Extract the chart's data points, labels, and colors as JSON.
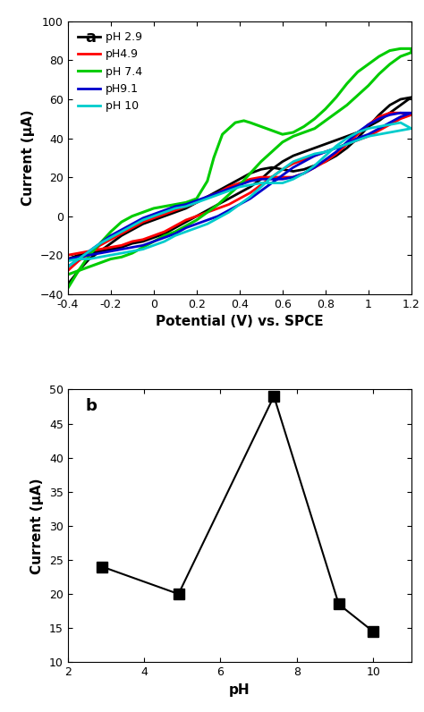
{
  "panel_a": {
    "title": "a",
    "xlabel": "Potential (V) vs. SPCE",
    "ylabel": "Current (μA)",
    "xlim": [
      -0.4,
      1.2
    ],
    "ylim": [
      -40,
      100
    ],
    "xticks": [
      -0.4,
      -0.2,
      0.0,
      0.2,
      0.4,
      0.6,
      0.8,
      1.0,
      1.2
    ],
    "yticks": [
      -40,
      -20,
      0,
      20,
      40,
      60,
      80,
      100
    ],
    "curves": [
      {
        "label": "pH 2.9",
        "color": "#000000",
        "lw": 2.0,
        "x": [
          -0.4,
          -0.35,
          -0.3,
          -0.25,
          -0.2,
          -0.15,
          -0.1,
          -0.05,
          0.0,
          0.05,
          0.1,
          0.15,
          0.2,
          0.25,
          0.3,
          0.35,
          0.4,
          0.45,
          0.5,
          0.55,
          0.6,
          0.65,
          0.7,
          0.75,
          0.8,
          0.85,
          0.9,
          0.95,
          1.0,
          1.05,
          1.1,
          1.15,
          1.2,
          1.2,
          1.15,
          1.1,
          1.05,
          1.0,
          0.95,
          0.9,
          0.85,
          0.8,
          0.75,
          0.7,
          0.65,
          0.6,
          0.55,
          0.5,
          0.45,
          0.4,
          0.35,
          0.3,
          0.25,
          0.2,
          0.15,
          0.1,
          0.05,
          0.0,
          -0.05,
          -0.1,
          -0.15,
          -0.2,
          -0.25,
          -0.3,
          -0.35,
          -0.4
        ],
        "y": [
          -35,
          -28,
          -22,
          -18,
          -14,
          -10,
          -7,
          -4,
          -2,
          0,
          2,
          4,
          7,
          10,
          13,
          16,
          19,
          22,
          24,
          25,
          24,
          23,
          24,
          26,
          28,
          31,
          35,
          40,
          46,
          52,
          57,
          60,
          61,
          61,
          57,
          53,
          49,
          46,
          43,
          41,
          39,
          37,
          35,
          33,
          31,
          28,
          24,
          19,
          15,
          12,
          9,
          6,
          3,
          0,
          -3,
          -6,
          -9,
          -11,
          -13,
          -14,
          -16,
          -17,
          -18,
          -19,
          -20,
          -22
        ]
      },
      {
        "label": "pH4.9",
        "color": "#ff0000",
        "lw": 2.0,
        "x": [
          -0.4,
          -0.35,
          -0.3,
          -0.25,
          -0.2,
          -0.15,
          -0.1,
          -0.05,
          0.0,
          0.05,
          0.1,
          0.15,
          0.2,
          0.25,
          0.3,
          0.35,
          0.4,
          0.45,
          0.5,
          0.55,
          0.6,
          0.65,
          0.7,
          0.75,
          0.8,
          0.85,
          0.9,
          0.95,
          1.0,
          1.05,
          1.1,
          1.15,
          1.2,
          1.2,
          1.15,
          1.1,
          1.05,
          1.0,
          0.95,
          0.9,
          0.85,
          0.8,
          0.75,
          0.7,
          0.65,
          0.6,
          0.55,
          0.5,
          0.45,
          0.4,
          0.35,
          0.3,
          0.25,
          0.2,
          0.15,
          0.1,
          0.05,
          0.0,
          -0.05,
          -0.1,
          -0.15,
          -0.2,
          -0.25,
          -0.3,
          -0.35,
          -0.4
        ],
        "y": [
          -28,
          -23,
          -19,
          -15,
          -12,
          -9,
          -6,
          -3,
          -1,
          1,
          3,
          5,
          7,
          10,
          12,
          15,
          17,
          19,
          20,
          20,
          20,
          20,
          22,
          25,
          28,
          32,
          37,
          42,
          47,
          51,
          53,
          53,
          52,
          52,
          50,
          47,
          44,
          41,
          39,
          37,
          35,
          33,
          31,
          29,
          27,
          24,
          20,
          16,
          12,
          9,
          6,
          4,
          2,
          0,
          -2,
          -5,
          -8,
          -10,
          -12,
          -13,
          -15,
          -16,
          -17,
          -18,
          -19,
          -20
        ]
      },
      {
        "label": "pH 7.4",
        "color": "#00cc00",
        "lw": 2.2,
        "x": [
          -0.4,
          -0.35,
          -0.3,
          -0.25,
          -0.2,
          -0.15,
          -0.1,
          -0.05,
          0.0,
          0.05,
          0.1,
          0.15,
          0.2,
          0.25,
          0.28,
          0.32,
          0.38,
          0.42,
          0.45,
          0.5,
          0.55,
          0.6,
          0.65,
          0.7,
          0.75,
          0.8,
          0.85,
          0.9,
          0.95,
          1.0,
          1.05,
          1.1,
          1.15,
          1.2,
          1.2,
          1.15,
          1.1,
          1.05,
          1.0,
          0.95,
          0.9,
          0.85,
          0.8,
          0.75,
          0.7,
          0.65,
          0.6,
          0.55,
          0.5,
          0.45,
          0.4,
          0.35,
          0.3,
          0.25,
          0.2,
          0.15,
          0.1,
          0.05,
          0.0,
          -0.05,
          -0.1,
          -0.15,
          -0.2,
          -0.25,
          -0.3,
          -0.35,
          -0.4
        ],
        "y": [
          -37,
          -28,
          -20,
          -14,
          -8,
          -3,
          0,
          2,
          4,
          5,
          6,
          7,
          9,
          18,
          30,
          42,
          48,
          49,
          48,
          46,
          44,
          42,
          43,
          46,
          50,
          55,
          61,
          68,
          74,
          78,
          82,
          85,
          86,
          86,
          84,
          82,
          78,
          73,
          67,
          62,
          57,
          53,
          49,
          45,
          43,
          41,
          38,
          33,
          28,
          22,
          16,
          11,
          6,
          2,
          -2,
          -5,
          -8,
          -10,
          -13,
          -16,
          -19,
          -21,
          -22,
          -24,
          -26,
          -28,
          -30
        ]
      },
      {
        "label": "pH9.1",
        "color": "#0000cc",
        "lw": 2.0,
        "x": [
          -0.4,
          -0.35,
          -0.3,
          -0.25,
          -0.2,
          -0.15,
          -0.1,
          -0.05,
          0.0,
          0.05,
          0.1,
          0.15,
          0.2,
          0.25,
          0.3,
          0.35,
          0.4,
          0.45,
          0.5,
          0.55,
          0.6,
          0.65,
          0.7,
          0.75,
          0.8,
          0.85,
          0.9,
          0.95,
          1.0,
          1.05,
          1.1,
          1.15,
          1.2,
          1.2,
          1.15,
          1.1,
          1.05,
          1.0,
          0.95,
          0.9,
          0.85,
          0.8,
          0.75,
          0.7,
          0.65,
          0.6,
          0.55,
          0.5,
          0.45,
          0.4,
          0.35,
          0.3,
          0.25,
          0.2,
          0.15,
          0.1,
          0.05,
          0.0,
          -0.05,
          -0.1,
          -0.15,
          -0.2,
          -0.25,
          -0.3,
          -0.35,
          -0.4
        ],
        "y": [
          -26,
          -22,
          -18,
          -14,
          -10,
          -7,
          -4,
          -1,
          1,
          3,
          5,
          6,
          8,
          10,
          12,
          14,
          16,
          18,
          19,
          19,
          19,
          20,
          22,
          25,
          29,
          33,
          38,
          43,
          47,
          50,
          52,
          53,
          53,
          53,
          51,
          48,
          45,
          42,
          40,
          37,
          35,
          33,
          31,
          28,
          25,
          21,
          17,
          13,
          9,
          6,
          3,
          0,
          -2,
          -4,
          -6,
          -9,
          -11,
          -13,
          -15,
          -16,
          -17,
          -18,
          -19,
          -20,
          -21,
          -22
        ]
      },
      {
        "label": "pH 10",
        "color": "#00cccc",
        "lw": 2.0,
        "x": [
          -0.4,
          -0.35,
          -0.3,
          -0.25,
          -0.2,
          -0.15,
          -0.1,
          -0.05,
          0.0,
          0.05,
          0.1,
          0.15,
          0.2,
          0.25,
          0.3,
          0.35,
          0.4,
          0.45,
          0.5,
          0.55,
          0.6,
          0.65,
          0.7,
          0.75,
          0.8,
          0.85,
          0.9,
          0.95,
          1.0,
          1.05,
          1.1,
          1.15,
          1.2,
          1.2,
          1.15,
          1.1,
          1.05,
          1.0,
          0.95,
          0.9,
          0.85,
          0.8,
          0.75,
          0.7,
          0.65,
          0.6,
          0.55,
          0.5,
          0.45,
          0.4,
          0.35,
          0.3,
          0.25,
          0.2,
          0.15,
          0.1,
          0.05,
          0.0,
          -0.05,
          -0.1,
          -0.15,
          -0.2,
          -0.25,
          -0.3,
          -0.35,
          -0.4
        ],
        "y": [
          -26,
          -22,
          -18,
          -14,
          -11,
          -8,
          -5,
          -2,
          0,
          2,
          4,
          5,
          7,
          9,
          11,
          13,
          15,
          16,
          17,
          17,
          17,
          19,
          22,
          26,
          31,
          36,
          40,
          43,
          45,
          46,
          47,
          48,
          45,
          45,
          44,
          43,
          42,
          41,
          39,
          37,
          35,
          33,
          32,
          30,
          28,
          24,
          20,
          15,
          10,
          6,
          2,
          -1,
          -4,
          -6,
          -8,
          -10,
          -13,
          -15,
          -17,
          -18,
          -19,
          -20,
          -21,
          -22,
          -22,
          -23
        ]
      }
    ]
  },
  "panel_b": {
    "title": "b",
    "xlabel": "pH",
    "ylabel": "Current (μA)",
    "xlim": [
      2,
      11
    ],
    "ylim": [
      10,
      50
    ],
    "xticks": [
      2,
      4,
      6,
      8,
      10
    ],
    "yticks": [
      10,
      15,
      20,
      25,
      30,
      35,
      40,
      45,
      50
    ],
    "x": [
      2.9,
      4.9,
      7.4,
      9.1,
      10.0
    ],
    "y": [
      24.0,
      20.0,
      49.0,
      18.5,
      14.5
    ],
    "color": "#000000",
    "marker": "s",
    "markersize": 8,
    "lw": 1.5
  },
  "background_color": "#ffffff",
  "spine_color": "#000000"
}
